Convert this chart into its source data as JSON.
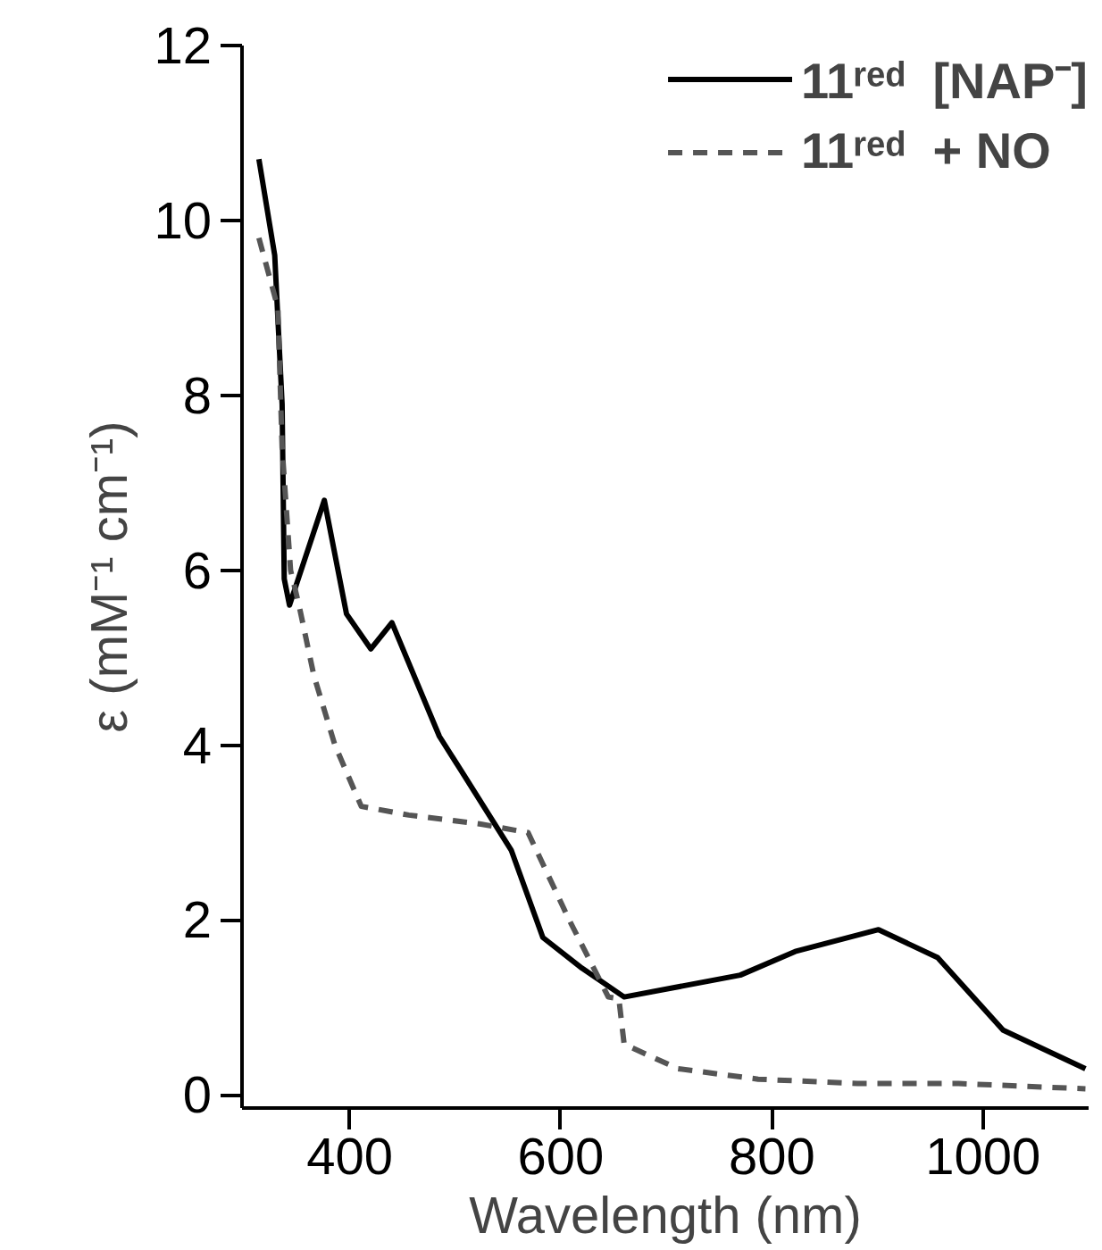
{
  "chart_data": {
    "type": "line",
    "xlabel": "Wavelength (nm)",
    "ylabel": "ε (mM⁻¹ cm⁻¹)",
    "xlim": [
      298,
      1100
    ],
    "ylim": [
      -0.15,
      12
    ],
    "xticks": [
      400,
      600,
      800,
      1000
    ],
    "yticks": [
      0,
      2,
      4,
      6,
      8,
      10,
      12
    ],
    "grid": false,
    "legend": "top right",
    "series": [
      {
        "name": "11ʳᵉᵈ  [NAP⁻]",
        "color": "#000000",
        "line_style": "solid",
        "x": [
          314,
          329,
          336,
          338,
          343,
          376,
          397,
          420,
          440,
          485,
          506,
          553,
          583,
          620,
          660,
          770,
          822,
          901,
          957,
          1019,
          1097
        ],
        "values": [
          10.7,
          9.6,
          7.9,
          5.9,
          5.6,
          6.8,
          5.5,
          5.1,
          5.4,
          4.1,
          3.7,
          2.8,
          1.8,
          1.45,
          1.12,
          1.37,
          1.64,
          1.89,
          1.57,
          0.74,
          0.3
        ]
      },
      {
        "name": "11ʳᵉᵈ  + NO",
        "color": "#555555",
        "line_style": "dashed",
        "x": [
          314,
          332,
          336,
          344,
          352,
          366,
          386,
          411,
          456,
          523,
          569,
          608,
          645,
          655,
          660,
          711,
          787,
          881,
          977,
          1097
        ],
        "values": [
          9.8,
          9.0,
          7.4,
          6.0,
          5.6,
          4.8,
          4.0,
          3.3,
          3.2,
          3.1,
          3.0,
          2.0,
          1.12,
          1.1,
          0.58,
          0.3,
          0.18,
          0.13,
          0.13,
          0.07
        ]
      }
    ]
  }
}
